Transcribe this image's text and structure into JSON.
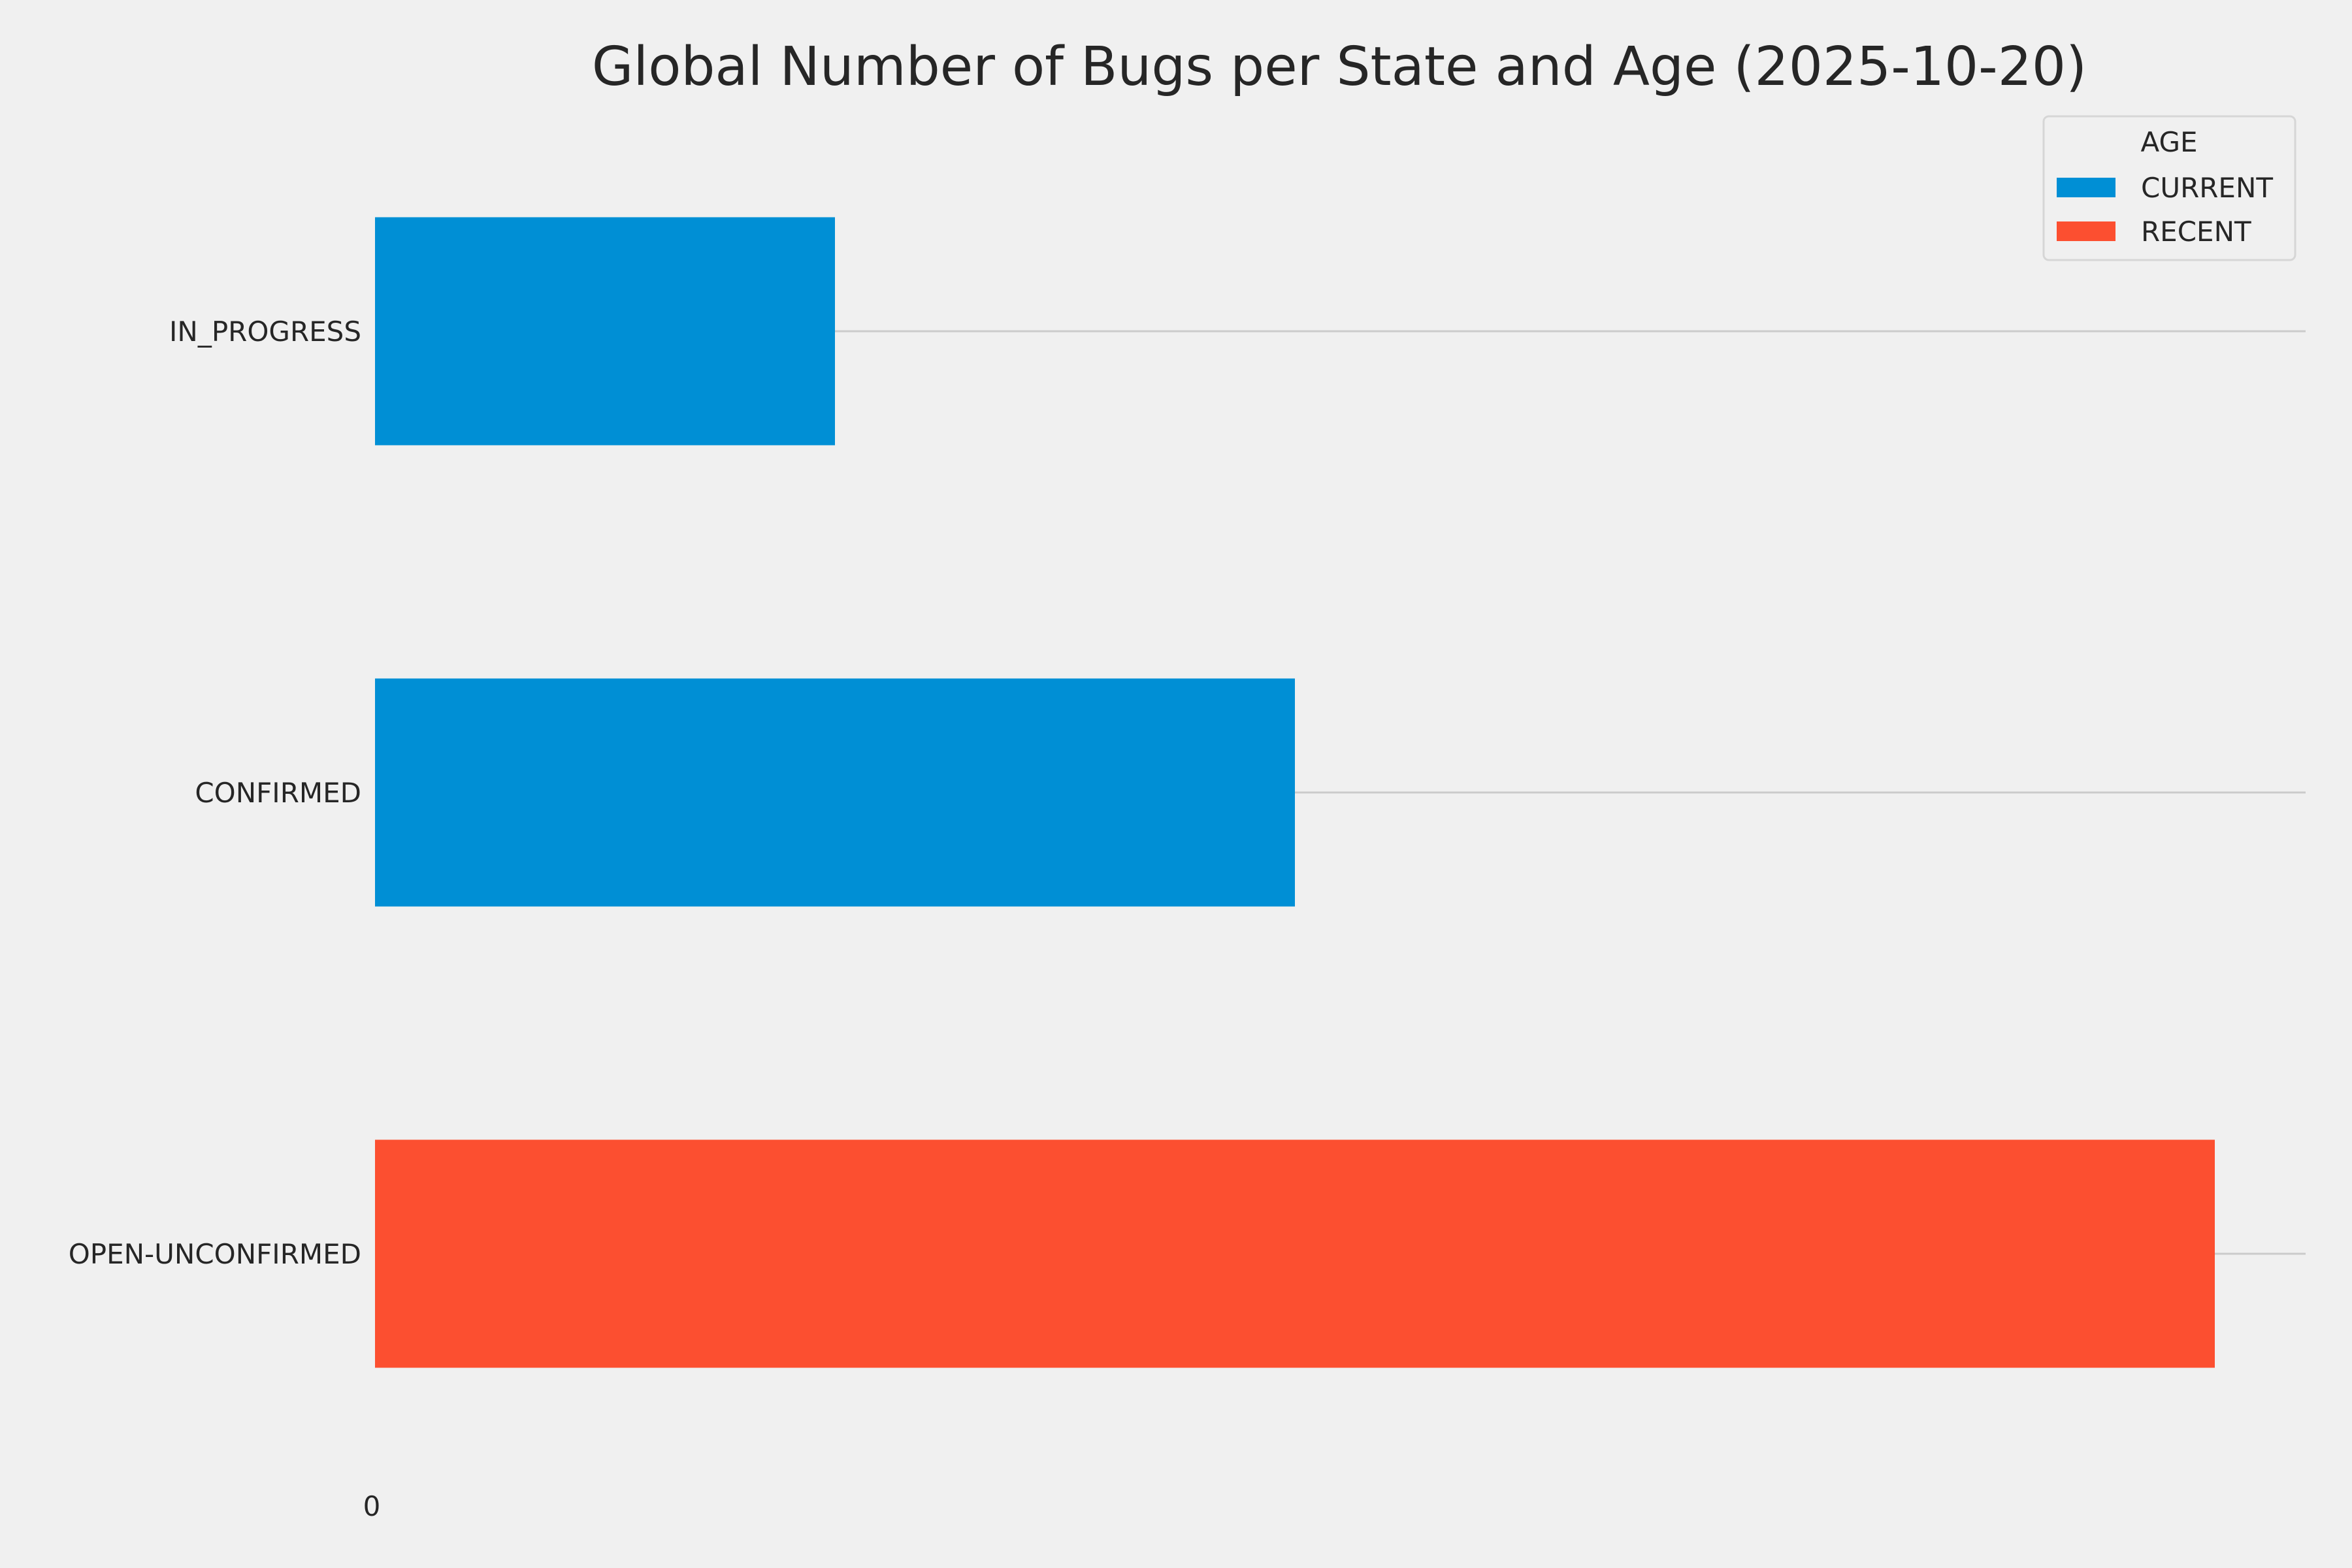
{
  "chart_data": {
    "type": "bar",
    "orientation": "horizontal",
    "title": "Global Number of Bugs per State and Age (2025-10-20)",
    "xlabel": "",
    "ylabel": "",
    "categories": [
      "IN_PROGRESS",
      "CONFIRMED",
      "OPEN-UNCONFIRMED"
    ],
    "series": [
      {
        "name": "CURRENT",
        "color": "#008fd5",
        "values": [
          1,
          2,
          null
        ]
      },
      {
        "name": "RECENT",
        "color": "#fc4f30",
        "values": [
          null,
          null,
          4
        ]
      }
    ],
    "xlim": [
      0,
      4.2
    ],
    "x_ticks": [
      "0"
    ],
    "grid": "horizontal",
    "legend": {
      "title": "AGE",
      "placement": "top-right"
    },
    "background": "#f0f0f0"
  }
}
